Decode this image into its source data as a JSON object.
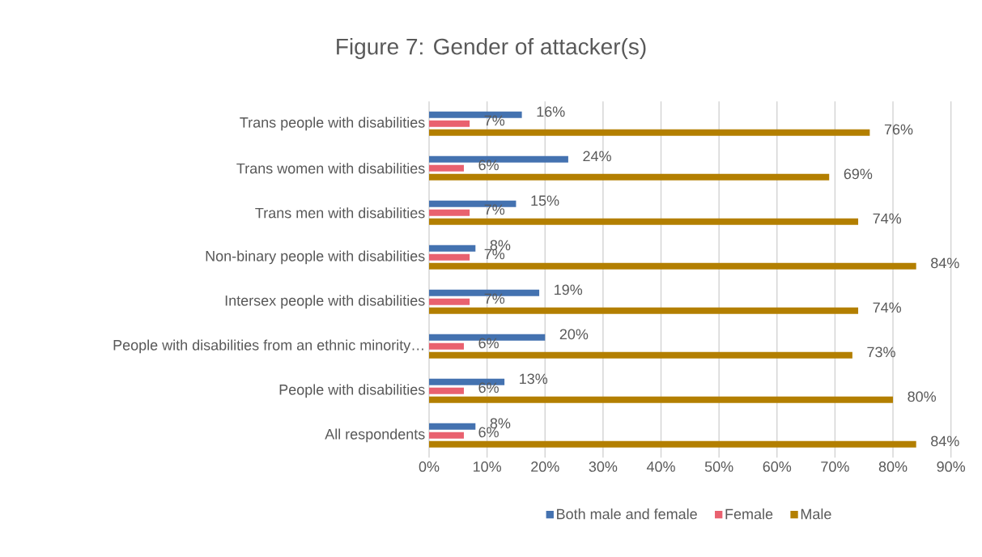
{
  "chart_data": {
    "type": "bar",
    "orientation": "horizontal",
    "title": "Figure 7: Gender of attacker(s)",
    "categories": [
      "Trans people with disabilities",
      "Trans women with disabilities",
      "Trans men with disabilities",
      "Non-binary people with disabilities",
      "Intersex people with disabilities",
      "People with disabilities from an ethnic minority…",
      "People with disabilities",
      "All respondents"
    ],
    "series": [
      {
        "name": "Both male and female",
        "color": "#4472b0",
        "values": [
          16,
          24,
          15,
          8,
          19,
          20,
          13,
          8
        ],
        "value_labels": [
          "16%",
          "24%",
          "15%",
          "8%",
          "19%",
          "20%",
          "13%",
          "8%"
        ]
      },
      {
        "name": "Female",
        "color": "#e9616f",
        "values": [
          7,
          6,
          7,
          7,
          7,
          6,
          6,
          6
        ],
        "value_labels": [
          "7%",
          "6%",
          "7%",
          "7%",
          "7%",
          "6%",
          "6%",
          "6%"
        ]
      },
      {
        "name": "Male",
        "color": "#b37f00",
        "values": [
          76,
          69,
          74,
          84,
          74,
          73,
          80,
          84
        ],
        "value_labels": [
          "76%",
          "69%",
          "74%",
          "84%",
          "74%",
          "73%",
          "80%",
          "84%"
        ]
      }
    ],
    "xlim": [
      0,
      90
    ],
    "xticks": [
      {
        "value": 0,
        "label": "0%"
      },
      {
        "value": 10,
        "label": "10%"
      },
      {
        "value": 20,
        "label": "20%"
      },
      {
        "value": 30,
        "label": "30%"
      },
      {
        "value": 40,
        "label": "40%"
      },
      {
        "value": 50,
        "label": "50%"
      },
      {
        "value": 60,
        "label": "60%"
      },
      {
        "value": 70,
        "label": "70%"
      },
      {
        "value": 80,
        "label": "80%"
      },
      {
        "value": 90,
        "label": "90%"
      }
    ],
    "grid": "x",
    "legend": "bottom"
  }
}
